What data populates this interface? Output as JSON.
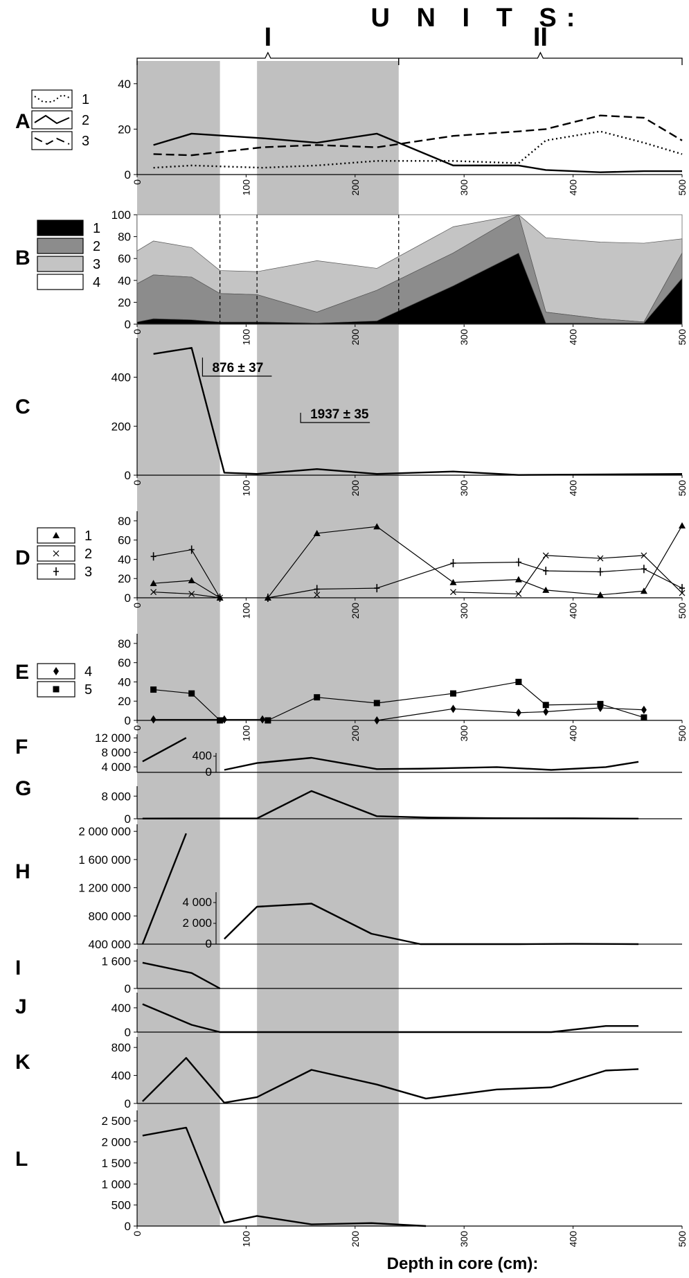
{
  "header": {
    "title": "U N I T S:",
    "units": [
      {
        "label": "I",
        "from": 0,
        "to": 240
      },
      {
        "label": "II",
        "from": 240,
        "to": 500
      }
    ]
  },
  "x_axis_label": "Depth in core (cm):",
  "shading": [
    [
      0,
      76
    ],
    [
      110,
      240
    ]
  ],
  "colors": {
    "shade": "#c0c0c0",
    "area1": "#000000",
    "area2": "#8c8c8c",
    "area3": "#c4c4c4",
    "area4": "#ffffff"
  },
  "chart_data": [
    {
      "id": "A",
      "type": "line",
      "xlim": [
        0,
        500
      ],
      "xticks": [
        0,
        100,
        200,
        300,
        400,
        500
      ],
      "ylim": [
        0,
        50
      ],
      "yticks": [
        0,
        20,
        40
      ],
      "ytick_labels": [
        "0",
        "20",
        "40"
      ],
      "legend": [
        "1",
        "2",
        "3"
      ],
      "series": [
        {
          "name": "1",
          "style": "dotted",
          "x": [
            15,
            50,
            115,
            165,
            220,
            290,
            350,
            375,
            425,
            465,
            500
          ],
          "y": [
            3,
            4,
            3,
            4,
            6,
            6,
            5,
            15,
            19,
            14,
            9
          ]
        },
        {
          "name": "2",
          "style": "solid",
          "x": [
            15,
            50,
            115,
            165,
            220,
            290,
            350,
            375,
            425,
            465,
            500
          ],
          "y": [
            13,
            18,
            16,
            14,
            18,
            4,
            4,
            2,
            1,
            1.5,
            1.5
          ]
        },
        {
          "name": "3",
          "style": "dashed",
          "x": [
            15,
            50,
            115,
            165,
            220,
            290,
            350,
            375,
            425,
            465,
            500
          ],
          "y": [
            9,
            8.5,
            12,
            13,
            12,
            17,
            19,
            20,
            26,
            25,
            15
          ]
        }
      ]
    },
    {
      "id": "B",
      "type": "area",
      "stacked": true,
      "xlim": [
        0,
        500
      ],
      "xticks": [
        0,
        100,
        200,
        300,
        400,
        500
      ],
      "ylim": [
        0,
        100
      ],
      "yticks": [
        0,
        20,
        40,
        60,
        80,
        100
      ],
      "ytick_labels": [
        "0",
        "20",
        "40",
        "60",
        "80",
        "100"
      ],
      "legend": [
        "1",
        "2",
        "3",
        "4"
      ],
      "x": [
        0,
        15,
        50,
        76,
        110,
        165,
        220,
        290,
        350,
        375,
        425,
        465,
        500
      ],
      "series": [
        {
          "name": "1",
          "values": [
            2,
            5,
            4,
            2,
            2,
            1,
            3,
            35,
            65,
            1,
            1,
            1,
            42
          ]
        },
        {
          "name": "2",
          "values": [
            35,
            40,
            39,
            26,
            25,
            10,
            28,
            30,
            35,
            10,
            4,
            1,
            23
          ]
        },
        {
          "name": "3",
          "values": [
            30,
            31,
            27,
            21,
            21,
            47,
            20,
            24,
            0,
            68,
            70,
            72,
            13
          ]
        }
      ],
      "dashed_lines_x": [
        76,
        110,
        240
      ]
    },
    {
      "id": "C",
      "type": "line",
      "xlim": [
        0,
        500
      ],
      "xticks": [
        0,
        100,
        200,
        300,
        400,
        500
      ],
      "ylim": [
        0,
        560
      ],
      "yticks": [
        0,
        200,
        400
      ],
      "ytick_labels": [
        "0",
        "200",
        "400"
      ],
      "series": [
        {
          "name": "",
          "x": [
            15,
            50,
            80,
            110,
            165,
            220,
            290,
            350,
            500
          ],
          "y": [
            495,
            520,
            10,
            5,
            25,
            5,
            15,
            1,
            5
          ]
        }
      ],
      "annotations": [
        {
          "text": "876 ± 37",
          "x": 60,
          "y": 480
        },
        {
          "text": "1937 ± 35",
          "x": 150,
          "y": 255
        }
      ]
    },
    {
      "id": "D",
      "type": "line",
      "xlim": [
        0,
        500
      ],
      "xticks": [
        0,
        100,
        200,
        300,
        400,
        500
      ],
      "ylim": [
        0,
        90
      ],
      "yticks": [
        0,
        20,
        40,
        60,
        80
      ],
      "ytick_labels": [
        "0",
        "20",
        "40",
        "60",
        "80"
      ],
      "legend": [
        "1",
        "2",
        "3"
      ],
      "series": [
        {
          "name": "1",
          "marker": "triangle",
          "segments": [
            {
              "x": [
                15,
                50,
                76
              ],
              "y": [
                15,
                18,
                0
              ]
            },
            {
              "x": [
                120,
                165,
                220,
                290,
                350,
                375,
                425,
                465,
                500
              ],
              "y": [
                0,
                67,
                74,
                16,
                19,
                8,
                3,
                7,
                75
              ]
            }
          ]
        },
        {
          "name": "2",
          "marker": "x",
          "segments": [
            {
              "x": [
                15,
                50,
                76
              ],
              "y": [
                6,
                4,
                0
              ]
            },
            {
              "x": [
                165
              ],
              "y": [
                3
              ]
            },
            {
              "x": [
                290,
                350,
                375,
                425,
                465,
                500
              ],
              "y": [
                6,
                4,
                44,
                41,
                44,
                5
              ]
            }
          ]
        },
        {
          "name": "3",
          "marker": "plus",
          "segments": [
            {
              "x": [
                15,
                50,
                76
              ],
              "y": [
                43,
                50,
                0
              ]
            },
            {
              "x": [
                120,
                165,
                220,
                290,
                350,
                375,
                425,
                465,
                500
              ],
              "y": [
                0,
                9,
                10,
                36,
                37,
                28,
                27,
                30,
                10
              ]
            }
          ]
        }
      ]
    },
    {
      "id": "E",
      "type": "line",
      "xlim": [
        0,
        500
      ],
      "xticks": [
        0,
        100,
        200,
        300,
        400,
        500
      ],
      "ylim": [
        0,
        90
      ],
      "yticks": [
        0,
        20,
        40,
        60,
        80
      ],
      "ytick_labels": [
        "0",
        "20",
        "40",
        "60",
        "80"
      ],
      "legend": [
        "4",
        "5"
      ],
      "series": [
        {
          "name": "4",
          "marker": "diamond",
          "segments": [
            {
              "x": [
                15,
                80,
                115
              ],
              "y": [
                1,
                1,
                1
              ]
            },
            {
              "x": [
                220,
                290,
                350,
                375,
                425,
                465
              ],
              "y": [
                0,
                12,
                8,
                9,
                13,
                11
              ]
            }
          ]
        },
        {
          "name": "5",
          "marker": "square",
          "segments": [
            {
              "x": [
                15,
                50,
                76
              ],
              "y": [
                32,
                28,
                0
              ]
            },
            {
              "x": [
                120,
                165,
                220,
                290,
                350,
                375,
                425,
                465
              ],
              "y": [
                0,
                24,
                18,
                28,
                40,
                16,
                17,
                3
              ]
            }
          ]
        }
      ]
    },
    {
      "id": "F",
      "type": "line",
      "xlim": [
        0,
        500
      ],
      "ylim": [
        2500,
        13000
      ],
      "yticks": [
        4000,
        8000,
        12000
      ],
      "ytick_labels": [
        "4 000",
        "8 000",
        "12 000"
      ],
      "series": [
        {
          "name": "",
          "x": [
            5,
            45
          ],
          "y": [
            5500,
            12000
          ]
        }
      ],
      "inset": {
        "xlim": [
          0,
          500
        ],
        "ylim": [
          0,
          480
        ],
        "yticks": [
          0,
          400
        ],
        "ytick_labels": [
          "0",
          "400"
        ],
        "series": [
          {
            "name": "",
            "x": [
              80,
              110,
              160,
              220,
              260,
              330,
              380,
              430,
              460
            ],
            "y": [
              60,
              230,
              360,
              80,
              90,
              130,
              60,
              130,
              260
            ]
          }
        ]
      }
    },
    {
      "id": "G",
      "type": "line",
      "xlim": [
        0,
        500
      ],
      "ylim": [
        0,
        11500
      ],
      "yticks": [
        0,
        8000
      ],
      "ytick_labels": [
        "0",
        "8 000"
      ],
      "series": [
        {
          "name": "",
          "x": [
            5,
            60,
            110,
            160,
            220,
            270,
            330,
            400,
            460
          ],
          "y": [
            80,
            100,
            100,
            9800,
            900,
            400,
            200,
            150,
            50
          ]
        }
      ]
    },
    {
      "id": "H",
      "type": "line",
      "xlim": [
        0,
        500
      ],
      "ylim": [
        400000,
        2100000
      ],
      "yticks": [
        400000,
        800000,
        1200000,
        1600000,
        2000000
      ],
      "ytick_labels": [
        "400 000",
        "800 000",
        "1 200 000",
        "1 600 000",
        "2 000 000"
      ],
      "series": [
        {
          "name": "",
          "x": [
            5,
            45
          ],
          "y": [
            400000,
            1970000
          ]
        }
      ],
      "inset": {
        "xlim": [
          0,
          500
        ],
        "ylim": [
          0,
          5000
        ],
        "yticks": [
          0,
          2000,
          4000
        ],
        "ytick_labels": [
          "0",
          "2 000",
          "4 000"
        ],
        "series": [
          {
            "name": "",
            "x": [
              80,
              110,
              160,
              215,
              260,
              350,
              400,
              460
            ],
            "y": [
              500,
              3600,
              3900,
              1000,
              0,
              0,
              30,
              0
            ]
          }
        ]
      }
    },
    {
      "id": "I",
      "type": "line",
      "xlim": [
        0,
        500
      ],
      "ylim": [
        0,
        2300
      ],
      "yticks": [
        0,
        1600
      ],
      "ytick_labels": [
        "0",
        "1 600"
      ],
      "series": [
        {
          "name": "",
          "x": [
            5,
            50,
            76
          ],
          "y": [
            1500,
            900,
            0
          ]
        }
      ]
    },
    {
      "id": "J",
      "type": "line",
      "xlim": [
        0,
        500
      ],
      "ylim": [
        0,
        650
      ],
      "yticks": [
        0,
        400
      ],
      "ytick_labels": [
        "0",
        "400"
      ],
      "series": [
        {
          "name": "",
          "x": [
            5,
            50,
            76,
            380,
            430,
            460
          ],
          "y": [
            460,
            120,
            0,
            0,
            100,
            100
          ]
        }
      ]
    },
    {
      "id": "K",
      "type": "line",
      "xlim": [
        0,
        500
      ],
      "ylim": [
        0,
        950
      ],
      "yticks": [
        0,
        400,
        800
      ],
      "ytick_labels": [
        "0",
        "400",
        "800"
      ],
      "series": [
        {
          "name": "",
          "x": [
            5,
            45,
            80,
            110,
            160,
            220,
            265,
            330,
            380,
            430,
            460
          ],
          "y": [
            30,
            650,
            10,
            90,
            480,
            270,
            70,
            200,
            230,
            470,
            490
          ]
        }
      ]
    },
    {
      "id": "L",
      "type": "line",
      "xlim": [
        0,
        500
      ],
      "xticks": [
        0,
        100,
        200,
        300,
        400,
        500
      ],
      "ylim": [
        0,
        2750
      ],
      "yticks": [
        0,
        500,
        1000,
        1500,
        2000,
        2500
      ],
      "ytick_labels": [
        "0",
        "500",
        "1 000",
        "1 500",
        "2 000",
        "2 500"
      ],
      "series": [
        {
          "name": "",
          "x": [
            5,
            45,
            80,
            110,
            160,
            215,
            265
          ],
          "y": [
            2150,
            2340,
            80,
            240,
            40,
            70,
            0
          ]
        }
      ]
    }
  ]
}
